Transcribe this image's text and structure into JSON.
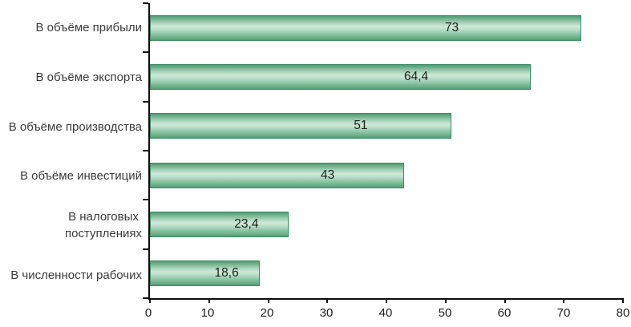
{
  "chart_data": {
    "type": "bar",
    "orientation": "horizontal",
    "title": "",
    "xlabel": "",
    "ylabel": "",
    "grid": false,
    "legend": false,
    "categories": [
      "В объёме прибыли",
      "В объёме экспорта",
      "В объёме производства",
      "В объёме инвестиций",
      "В налоговых\nпоступлениях",
      "В численности рабочих"
    ],
    "values": [
      73,
      64.4,
      51,
      43,
      23.4,
      18.6
    ],
    "value_labels": [
      "73",
      "64,4",
      "51",
      "43",
      "23,4",
      "18,6"
    ],
    "xlim": [
      0,
      80
    ],
    "x_ticks": [
      0,
      10,
      20,
      30,
      40,
      50,
      60,
      70,
      80
    ],
    "x_tick_labels": [
      "0",
      "10",
      "20",
      "30",
      "40",
      "50",
      "60",
      "70",
      "80"
    ],
    "colors": {
      "bar_fill_light": "#cde8d6",
      "bar_fill_dark": "#4e9c74",
      "bar_border": "#3e8e66",
      "axis": "#0d0d0d",
      "category_text": "#3b3b3b",
      "tick_text": "#1c1c1c",
      "value_text": "#1f1f1f",
      "background": "#ffffff"
    }
  }
}
